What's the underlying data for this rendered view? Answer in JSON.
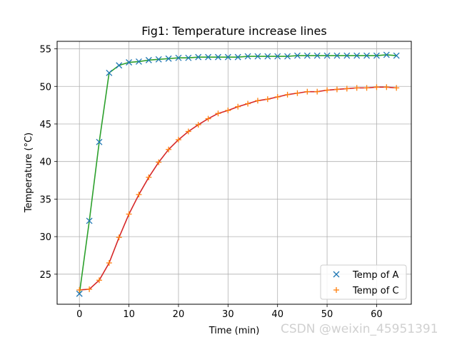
{
  "chart_data": {
    "type": "line",
    "title": "Fig1: Temperature increase lines",
    "xlabel": "Time (min)",
    "ylabel": "Temperature (°C)",
    "xlim": [
      -4.5,
      67
    ],
    "ylim": [
      21,
      56
    ],
    "xticks": [
      0,
      10,
      20,
      30,
      40,
      50,
      60
    ],
    "yticks": [
      25,
      30,
      35,
      40,
      45,
      50,
      55
    ],
    "grid": true,
    "legend_position": "bottom-right",
    "x": [
      0,
      2,
      4,
      6,
      8,
      10,
      12,
      14,
      16,
      18,
      20,
      22,
      24,
      26,
      28,
      30,
      32,
      34,
      36,
      38,
      40,
      42,
      44,
      46,
      48,
      50,
      52,
      54,
      56,
      58,
      60,
      62,
      64
    ],
    "series": [
      {
        "name": "Temp of A",
        "marker": "x",
        "marker_color": "#1f77b4",
        "line_color": "#2ca02c",
        "values": [
          22.4,
          32.1,
          42.6,
          51.8,
          52.8,
          53.2,
          53.3,
          53.5,
          53.6,
          53.7,
          53.8,
          53.8,
          53.9,
          53.9,
          53.9,
          53.9,
          53.9,
          54.0,
          54.0,
          54.0,
          54.0,
          54.0,
          54.1,
          54.1,
          54.1,
          54.1,
          54.1,
          54.1,
          54.1,
          54.1,
          54.1,
          54.2,
          54.1
        ]
      },
      {
        "name": "Temp of C",
        "marker": "+",
        "marker_color": "#ff7f0e",
        "line_color": "#d62728",
        "values": [
          22.9,
          23.0,
          24.2,
          26.5,
          29.9,
          33.0,
          35.6,
          37.9,
          39.9,
          41.6,
          42.9,
          44.0,
          44.9,
          45.7,
          46.4,
          46.8,
          47.3,
          47.7,
          48.1,
          48.3,
          48.6,
          48.9,
          49.1,
          49.3,
          49.3,
          49.5,
          49.6,
          49.7,
          49.8,
          49.8,
          49.9,
          49.9,
          49.8
        ]
      }
    ]
  },
  "watermark": "CSDN @weixin_45951391"
}
